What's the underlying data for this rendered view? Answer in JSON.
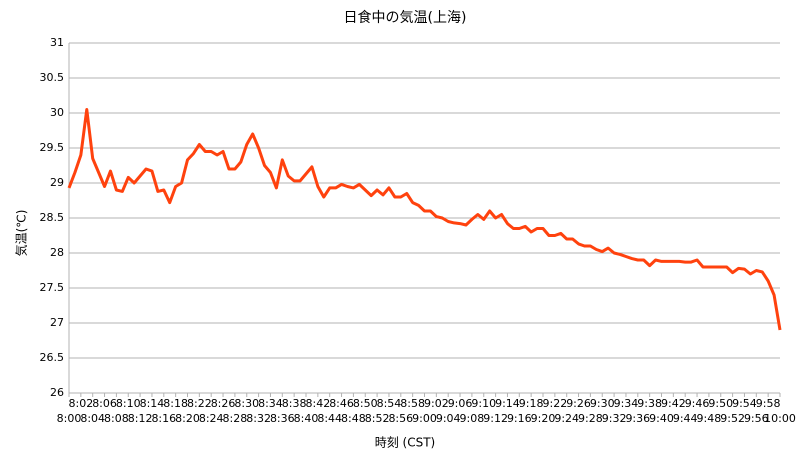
{
  "chart_data": {
    "type": "line",
    "title": "日食中の気温(上海)",
    "x_label": "時刻 (CST)",
    "y_label": "気温(℃)",
    "categories": [
      "8:00",
      null,
      "8:02",
      null,
      "8:04",
      null,
      "8:06",
      null,
      "8:08",
      null,
      "8:10",
      null,
      "8:12",
      null,
      "8:14",
      null,
      "8:16",
      null,
      "8:18",
      null,
      "8:20",
      null,
      "8:22",
      null,
      "8:24",
      null,
      "8:26",
      null,
      "8:28",
      null,
      "8:30",
      null,
      "8:32",
      null,
      "8:34",
      null,
      "8:36",
      null,
      "8:38",
      null,
      "8:40",
      null,
      "8:42",
      null,
      "8:44",
      null,
      "8:46",
      null,
      "8:48",
      null,
      "8:50",
      null,
      "8:52",
      null,
      "8:54",
      null,
      "8:56",
      null,
      "8:58",
      null,
      "9:00",
      null,
      "9:02",
      null,
      "9:04",
      null,
      "9:06",
      null,
      "9:08",
      null,
      "9:10",
      null,
      "9:12",
      null,
      "9:14",
      null,
      "9:16",
      null,
      "9:18",
      null,
      "9:20",
      null,
      "9:22",
      null,
      "9:24",
      null,
      "9:26",
      null,
      "9:28",
      null,
      "9:30",
      null,
      "9:32",
      null,
      "9:34",
      null,
      "9:36",
      null,
      "9:38",
      null,
      "9:40",
      null,
      "9:42",
      null,
      "9:44",
      null,
      "9:46",
      null,
      "9:48",
      null,
      "9:50",
      null,
      "9:52",
      null,
      "9:54",
      null,
      "9:56",
      null,
      "9:58",
      null,
      "10:00"
    ],
    "values": [
      28.93,
      29.15,
      29.4,
      30.05,
      29.35,
      29.15,
      28.95,
      29.17,
      28.9,
      28.88,
      29.08,
      29.0,
      29.1,
      29.2,
      29.17,
      28.88,
      28.9,
      28.72,
      28.95,
      29.0,
      29.33,
      29.42,
      29.55,
      29.45,
      29.45,
      29.4,
      29.45,
      29.2,
      29.2,
      29.3,
      29.55,
      29.7,
      29.5,
      29.25,
      29.15,
      28.93,
      29.33,
      29.1,
      29.03,
      29.03,
      29.13,
      29.23,
      28.95,
      28.8,
      28.93,
      28.93,
      28.98,
      28.95,
      28.93,
      28.98,
      28.9,
      28.82,
      28.9,
      28.83,
      28.93,
      28.8,
      28.8,
      28.85,
      28.72,
      28.68,
      28.6,
      28.6,
      28.52,
      28.5,
      28.45,
      28.43,
      28.42,
      28.4,
      28.48,
      28.55,
      28.48,
      28.6,
      28.5,
      28.55,
      28.42,
      28.35,
      28.35,
      28.38,
      28.3,
      28.35,
      28.35,
      28.25,
      28.25,
      28.28,
      28.2,
      28.2,
      28.13,
      28.1,
      28.1,
      28.05,
      28.02,
      28.07,
      28.0,
      27.98,
      27.95,
      27.92,
      27.9,
      27.9,
      27.82,
      27.9,
      27.88,
      27.88,
      27.88,
      27.88,
      27.87,
      27.87,
      27.9,
      27.8,
      27.8,
      27.8,
      27.8,
      27.8,
      27.72,
      27.78,
      27.77,
      27.7,
      27.75,
      27.73,
      27.6,
      27.4,
      26.9
    ],
    "color": "#ff420e",
    "ylim": [
      26,
      31
    ],
    "yticks": [
      26,
      26.5,
      27,
      27.5,
      28,
      28.5,
      29,
      29.5,
      30,
      30.5,
      31
    ],
    "grid": true
  }
}
